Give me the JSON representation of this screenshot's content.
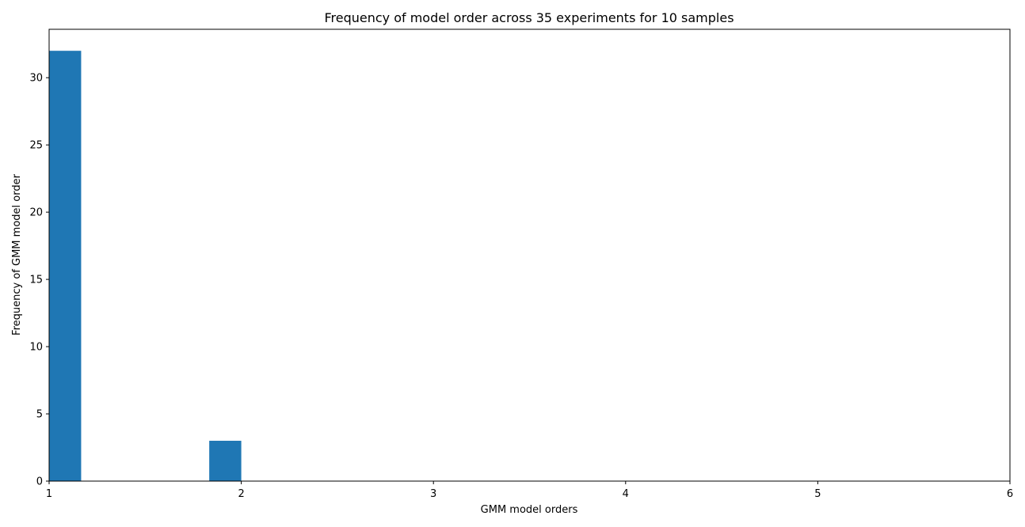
{
  "chart_data": {
    "type": "bar",
    "title": "Frequency of model order across 35 experiments for 10 samples",
    "xlabel": "GMM model orders",
    "ylabel": "Frequency of GMM model order",
    "xlim": [
      1,
      6
    ],
    "ylim": [
      0,
      33.6
    ],
    "xticks": [
      "1",
      "2",
      "3",
      "4",
      "5",
      "6"
    ],
    "yticks": [
      "0",
      "5",
      "10",
      "15",
      "20",
      "25",
      "30"
    ],
    "bars": [
      {
        "x_start": 1.0,
        "x_end": 1.1667,
        "value": 32
      },
      {
        "x_start": 1.8333,
        "x_end": 2.0,
        "value": 3
      }
    ],
    "bar_color": "#1f77b4",
    "grid": false,
    "legend": "none"
  }
}
